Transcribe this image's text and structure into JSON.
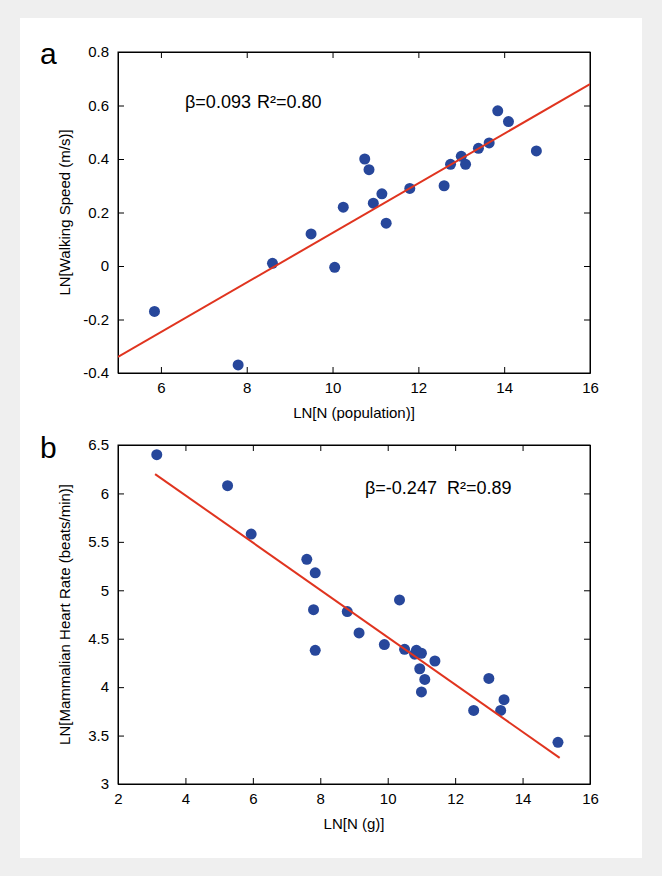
{
  "chart_data": [
    {
      "type": "scatter",
      "title": "a",
      "x_label": "LN[N (population)]",
      "y_label": "LN[Walking Speed (m/s)]",
      "annotations": [
        "β=0.093",
        "R²=0.80"
      ],
      "xlim": [
        5,
        16
      ],
      "xticks": [
        6,
        8,
        10,
        12,
        14,
        16
      ],
      "ylim": [
        -0.4,
        0.8
      ],
      "yticks": [
        -0.4,
        -0.2,
        0,
        0.2,
        0.4,
        0.6,
        0.8
      ],
      "series": [
        {
          "type": "scatter",
          "marker": "circle",
          "color": "#27479b",
          "x": [
            5.85,
            7.8,
            8.6,
            9.5,
            10.05,
            10.25,
            10.75,
            10.85,
            10.95,
            11.15,
            11.25,
            11.8,
            12.6,
            12.75,
            13.0,
            13.1,
            13.4,
            13.65,
            13.85,
            14.1,
            14.75
          ],
          "values": [
            -0.17,
            -0.37,
            0.01,
            0.12,
            -0.005,
            0.22,
            0.4,
            0.36,
            0.235,
            0.27,
            0.16,
            0.29,
            0.3,
            0.38,
            0.41,
            0.38,
            0.44,
            0.46,
            0.58,
            0.54,
            0.43
          ]
        },
        {
          "type": "line",
          "line_style": "solid",
          "color": "#e0341f",
          "x": [
            5,
            16
          ],
          "values": [
            -0.34,
            0.68
          ]
        }
      ]
    },
    {
      "type": "scatter",
      "title": "b",
      "x_label": "LN[N (g)]",
      "y_label": "LN[Mammalian Heart Rate (beats/min)]",
      "annotations": [
        "β=-0.247",
        "R²=0.89"
      ],
      "xlim": [
        2,
        16
      ],
      "xticks": [
        2,
        4,
        6,
        8,
        10,
        12,
        14,
        16
      ],
      "ylim": [
        3,
        6.5
      ],
      "yticks": [
        3,
        3.5,
        4,
        4.5,
        5,
        5.5,
        6,
        6.5
      ],
      "series": [
        {
          "type": "scatter",
          "marker": "circle",
          "color": "#27479b",
          "x": [
            3.15,
            5.25,
            5.95,
            7.6,
            7.85,
            7.8,
            7.85,
            8.8,
            9.15,
            9.9,
            10.35,
            10.5,
            10.8,
            10.85,
            10.95,
            11.0,
            11.0,
            11.1,
            11.4,
            12.55,
            13.0,
            13.35,
            13.45,
            15.05
          ],
          "values": [
            6.4,
            6.08,
            5.58,
            5.32,
            5.18,
            4.8,
            4.38,
            4.78,
            4.56,
            4.44,
            4.9,
            4.39,
            4.34,
            4.38,
            4.19,
            3.95,
            4.35,
            4.08,
            4.27,
            3.76,
            4.09,
            3.76,
            3.87,
            3.43
          ]
        },
        {
          "type": "line",
          "line_style": "solid",
          "color": "#e0341f",
          "x": [
            3.1,
            15.1
          ],
          "values": [
            6.2,
            3.27
          ]
        }
      ]
    }
  ]
}
